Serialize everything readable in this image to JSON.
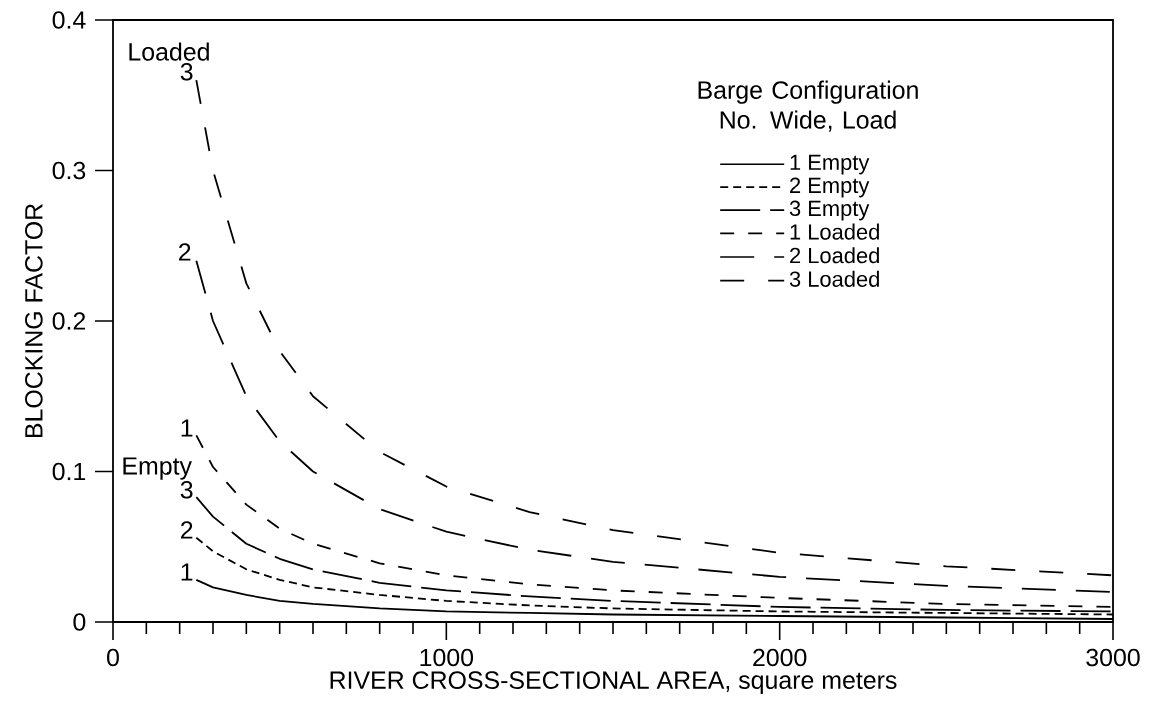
{
  "chart_data": {
    "type": "line",
    "xlabel": "RIVER CROSS-SECTIONAL AREA, square meters",
    "ylabel": "BLOCKING FACTOR",
    "legend_title": "Barge Configuration No. Wide, Load",
    "legend": "top right",
    "x": [
      250,
      300,
      400,
      500,
      600,
      800,
      1000,
      1250,
      1500,
      2000,
      2500,
      3000
    ],
    "series": [
      {
        "name": "1 Empty",
        "color": "#000000",
        "line_style": "solid",
        "values": [
          0.028,
          0.023,
          0.018,
          0.014,
          0.012,
          0.009,
          0.007,
          0.006,
          0.005,
          0.004,
          0.003,
          0.002
        ]
      },
      {
        "name": "2 Empty",
        "color": "#000000",
        "line_style": "densely dashed",
        "values": [
          0.056,
          0.047,
          0.035,
          0.028,
          0.023,
          0.018,
          0.014,
          0.011,
          0.009,
          0.007,
          0.006,
          0.005
        ]
      },
      {
        "name": "3 Empty",
        "color": "#000000",
        "line_style": "long dashed",
        "values": [
          0.083,
          0.07,
          0.052,
          0.042,
          0.035,
          0.026,
          0.021,
          0.017,
          0.014,
          0.01,
          0.008,
          0.007
        ]
      },
      {
        "name": "1 Loaded",
        "color": "#000000",
        "line_style": "dashed",
        "values": [
          0.124,
          0.103,
          0.078,
          0.062,
          0.052,
          0.039,
          0.031,
          0.025,
          0.021,
          0.016,
          0.012,
          0.01
        ]
      },
      {
        "name": "2 Loaded",
        "color": "#000000",
        "line_style": "loosely long dashed",
        "values": [
          0.24,
          0.2,
          0.15,
          0.12,
          0.1,
          0.075,
          0.06,
          0.048,
          0.04,
          0.03,
          0.024,
          0.02
        ]
      },
      {
        "name": "3 Loaded",
        "color": "#000000",
        "line_style": "loosely dashed",
        "values": [
          0.36,
          0.3,
          0.225,
          0.18,
          0.15,
          0.113,
          0.09,
          0.073,
          0.061,
          0.046,
          0.037,
          0.031
        ]
      }
    ],
    "xlim": [
      0,
      3000
    ],
    "xticks": [
      0,
      1000,
      2000,
      3000
    ],
    "ylim": [
      0,
      0.4
    ],
    "yticks": [
      0,
      0.1,
      0.2,
      0.3,
      0.4
    ],
    "grid": false,
    "annotations": [
      "Loaded",
      "3",
      "2",
      "1",
      "Empty",
      "3",
      "2",
      "1"
    ]
  }
}
